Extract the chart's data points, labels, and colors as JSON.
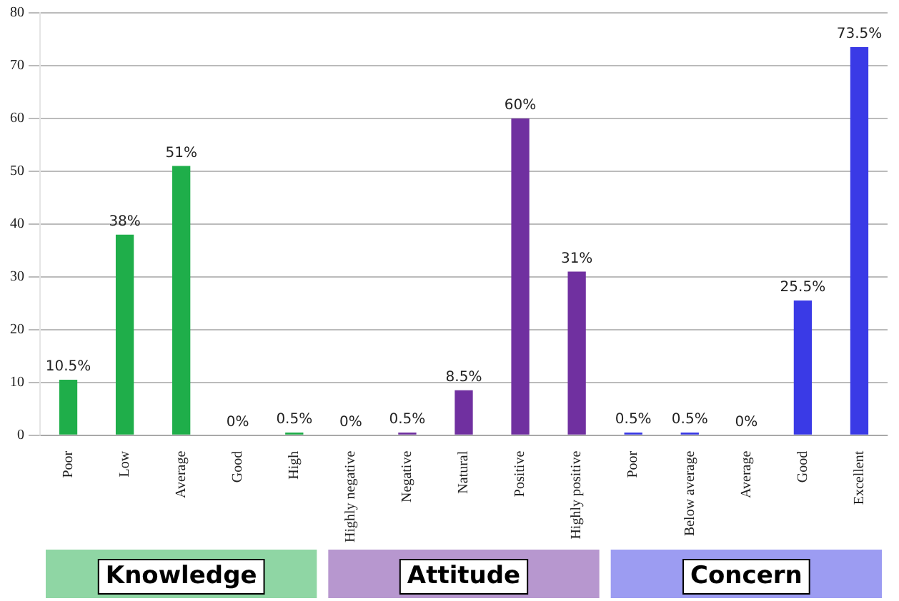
{
  "chart_data": {
    "type": "bar",
    "categories": [
      "Poor",
      "Low",
      "Average",
      "Good",
      "High",
      "Highly negative",
      "Negative",
      "Natural",
      "Positive",
      "Highly positive",
      "Poor",
      "Below average",
      "Average",
      "Good",
      "Excellent"
    ],
    "values": [
      10.5,
      38,
      51,
      0,
      0.5,
      0,
      0.5,
      8.5,
      60,
      31,
      0.5,
      0.5,
      0,
      25.5,
      73.5
    ],
    "value_labels": [
      "10.5%",
      "38%",
      "51%",
      "0%",
      "0.5%",
      "0%",
      "0.5%",
      "8.5%",
      "60%",
      "31%",
      "0.5%",
      "0.5%",
      "0%",
      "25.5%",
      "73.5%"
    ],
    "colors": [
      "#1fae4a",
      "#1fae4a",
      "#1fae4a",
      "#1fae4a",
      "#1fae4a",
      "#7030a0",
      "#7030a0",
      "#7030a0",
      "#7030a0",
      "#7030a0",
      "#3a3ae6",
      "#3a3ae6",
      "#3a3ae6",
      "#3a3ae6",
      "#3a3ae6"
    ],
    "annotations": [
      "Knowledge",
      "Attitude",
      "Concern"
    ],
    "ylim": [
      0,
      80
    ],
    "yticks": [
      0,
      10,
      20,
      30,
      40,
      50,
      60,
      70,
      80
    ],
    "grid": "y",
    "legend": false
  }
}
